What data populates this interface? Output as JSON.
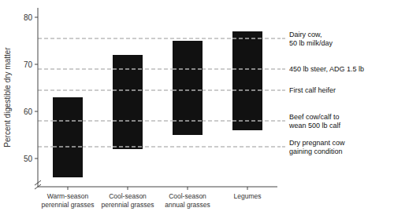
{
  "chart_data": {
    "type": "bar",
    "categories": [
      "Warm-season\nperennial grasses",
      "Cool-season\nperennial grasses",
      "Cool-season\nannual grasses",
      "Legumes"
    ],
    "bottoms": [
      46,
      52,
      55,
      56
    ],
    "values": [
      63,
      72,
      75,
      77
    ],
    "color": "#111111",
    "y_label": "Percent digestible dry matter",
    "ylim": [
      44,
      82
    ],
    "yticks": [
      50,
      60,
      70,
      80
    ],
    "annotations": [
      {
        "y": 75.5,
        "label": "Dairy cow,\n50 lb milk/day"
      },
      {
        "y": 69.0,
        "label": "450 lb steer, ADG 1.5 lb"
      },
      {
        "y": 64.5,
        "label": "First calf heifer"
      },
      {
        "y": 58.0,
        "label": "Beef cow/calf to\nwean 500 lb calf"
      },
      {
        "y": 52.5,
        "label": "Dry pregnant cow\ngaining condition"
      }
    ]
  }
}
